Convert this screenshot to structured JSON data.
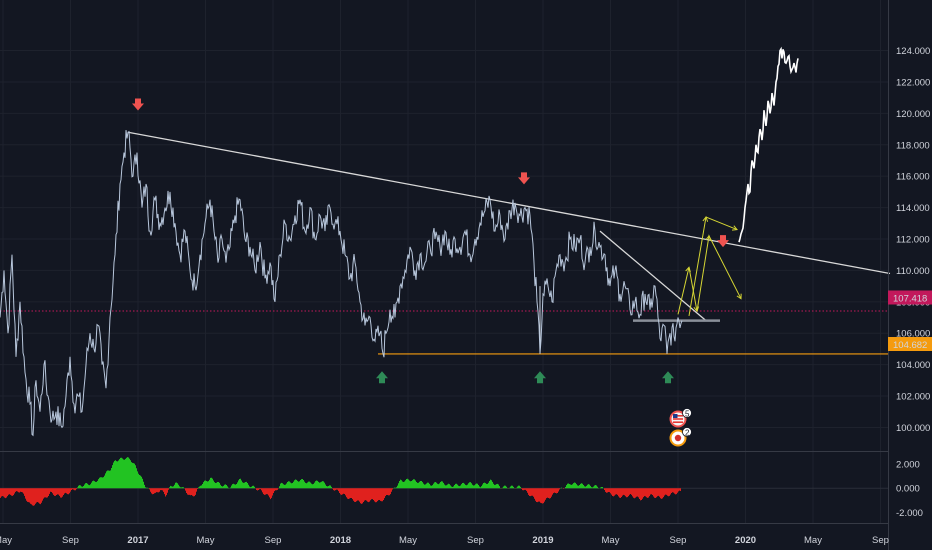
{
  "colors": {
    "background": "#131722",
    "price_line": "#b8c7dc",
    "projection": "#ffffff",
    "trendline": "#d8d8d8",
    "support": "#f59b0e",
    "dotted_level": "#c2185b",
    "bear_arrow": "#ef5350",
    "bull_arrow": "#2e8b57",
    "path_arrows": "#d6d634",
    "osc_positive": "#22c322",
    "osc_negative": "#e0211e"
  },
  "icons": {
    "event_us": "us-flag-event-icon",
    "event_jp": "japan-flag-event-icon"
  },
  "events": [
    {
      "label": "5"
    },
    {
      "label": "2"
    }
  ],
  "price_axis": {
    "ticks": [
      "124.000",
      "122.000",
      "120.000",
      "118.000",
      "116.000",
      "114.000",
      "112.000",
      "110.000",
      "108.000",
      "106.000",
      "104.000",
      "102.000",
      "100.000"
    ]
  },
  "price_labels": {
    "current": "107.418",
    "support": "104.682"
  },
  "osc_axis": {
    "ticks": [
      "2.000",
      "0.000",
      "-2.000"
    ]
  },
  "time_axis": {
    "ticks": [
      {
        "label": "May",
        "year": false
      },
      {
        "label": "Sep",
        "year": false
      },
      {
        "label": "2017",
        "year": true
      },
      {
        "label": "May",
        "year": false
      },
      {
        "label": "Sep",
        "year": false
      },
      {
        "label": "2018",
        "year": true
      },
      {
        "label": "May",
        "year": false
      },
      {
        "label": "Sep",
        "year": false
      },
      {
        "label": "2019",
        "year": true
      },
      {
        "label": "May",
        "year": false
      },
      {
        "label": "Sep",
        "year": false
      },
      {
        "label": "2020",
        "year": true
      },
      {
        "label": "May",
        "year": false
      },
      {
        "label": "Sep",
        "year": false
      }
    ]
  },
  "chart_data": {
    "type": "line",
    "price_levels": {
      "current": 107.418,
      "support": 104.682
    },
    "price_ylim": [
      98.5,
      125.5
    ],
    "price_series": [
      {
        "t": 0,
        "y": 107
      },
      {
        "t": 4,
        "y": 110
      },
      {
        "t": 8,
        "y": 106
      },
      {
        "t": 12,
        "y": 111
      },
      {
        "t": 16,
        "y": 104.5
      },
      {
        "t": 20,
        "y": 108
      },
      {
        "t": 25,
        "y": 103.5
      },
      {
        "t": 30,
        "y": 101.5
      },
      {
        "t": 33,
        "y": 99.5
      },
      {
        "t": 36,
        "y": 103
      },
      {
        "t": 40,
        "y": 101
      },
      {
        "t": 44,
        "y": 104
      },
      {
        "t": 48,
        "y": 102
      },
      {
        "t": 52,
        "y": 100.5
      },
      {
        "t": 56,
        "y": 101
      },
      {
        "t": 62,
        "y": 100
      },
      {
        "t": 66,
        "y": 102
      },
      {
        "t": 70,
        "y": 104.5
      },
      {
        "t": 74,
        "y": 101.5
      },
      {
        "t": 78,
        "y": 102
      },
      {
        "t": 82,
        "y": 101
      },
      {
        "t": 86,
        "y": 104
      },
      {
        "t": 90,
        "y": 106
      },
      {
        "t": 94,
        "y": 105
      },
      {
        "t": 98,
        "y": 106.5
      },
      {
        "t": 102,
        "y": 104
      },
      {
        "t": 106,
        "y": 102.5
      },
      {
        "t": 110,
        "y": 107
      },
      {
        "t": 115,
        "y": 111
      },
      {
        "t": 120,
        "y": 115.5
      },
      {
        "t": 124,
        "y": 117.5
      },
      {
        "t": 128,
        "y": 118.8
      },
      {
        "t": 133,
        "y": 116
      },
      {
        "t": 137,
        "y": 117.5
      },
      {
        "t": 142,
        "y": 114
      },
      {
        "t": 146,
        "y": 115.5
      },
      {
        "t": 150,
        "y": 112.5
      },
      {
        "t": 155,
        "y": 114.5
      },
      {
        "t": 160,
        "y": 113
      },
      {
        "t": 165,
        "y": 114
      },
      {
        "t": 170,
        "y": 115
      },
      {
        "t": 175,
        "y": 113
      },
      {
        "t": 180,
        "y": 111
      },
      {
        "t": 185,
        "y": 112.5
      },
      {
        "t": 190,
        "y": 110
      },
      {
        "t": 195,
        "y": 109
      },
      {
        "t": 200,
        "y": 111
      },
      {
        "t": 205,
        "y": 113
      },
      {
        "t": 210,
        "y": 114.5
      },
      {
        "t": 214,
        "y": 112.5
      },
      {
        "t": 218,
        "y": 110.5
      },
      {
        "t": 222,
        "y": 112
      },
      {
        "t": 226,
        "y": 110.5
      },
      {
        "t": 230,
        "y": 111.5
      },
      {
        "t": 235,
        "y": 113.5
      },
      {
        "t": 240,
        "y": 114.5
      },
      {
        "t": 245,
        "y": 112
      },
      {
        "t": 250,
        "y": 111.5
      },
      {
        "t": 255,
        "y": 110
      },
      {
        "t": 260,
        "y": 111.8
      },
      {
        "t": 265,
        "y": 109.5
      },
      {
        "t": 270,
        "y": 110.5
      },
      {
        "t": 275,
        "y": 108
      },
      {
        "t": 280,
        "y": 111
      },
      {
        "t": 285,
        "y": 113
      },
      {
        "t": 290,
        "y": 112
      },
      {
        "t": 295,
        "y": 113.5
      },
      {
        "t": 300,
        "y": 114.5
      },
      {
        "t": 305,
        "y": 112.5
      },
      {
        "t": 310,
        "y": 114
      },
      {
        "t": 315,
        "y": 112
      },
      {
        "t": 320,
        "y": 113.5
      },
      {
        "t": 325,
        "y": 112.5
      },
      {
        "t": 330,
        "y": 114
      },
      {
        "t": 335,
        "y": 113
      },
      {
        "t": 340,
        "y": 112.5
      },
      {
        "t": 345,
        "y": 111
      },
      {
        "t": 350,
        "y": 109.5
      },
      {
        "t": 355,
        "y": 110.5
      },
      {
        "t": 360,
        "y": 108
      },
      {
        "t": 365,
        "y": 106.5
      },
      {
        "t": 370,
        "y": 107
      },
      {
        "t": 375,
        "y": 105.5
      },
      {
        "t": 380,
        "y": 106
      },
      {
        "t": 383,
        "y": 104.7
      },
      {
        "t": 386,
        "y": 106
      },
      {
        "t": 390,
        "y": 107.5
      },
      {
        "t": 395,
        "y": 107
      },
      {
        "t": 400,
        "y": 109
      },
      {
        "t": 405,
        "y": 110
      },
      {
        "t": 410,
        "y": 111.5
      },
      {
        "t": 415,
        "y": 110
      },
      {
        "t": 420,
        "y": 111
      },
      {
        "t": 425,
        "y": 110.5
      },
      {
        "t": 430,
        "y": 111.5
      },
      {
        "t": 435,
        "y": 112
      },
      {
        "t": 440,
        "y": 111.5
      },
      {
        "t": 445,
        "y": 112.5
      },
      {
        "t": 450,
        "y": 111
      },
      {
        "t": 455,
        "y": 112
      },
      {
        "t": 460,
        "y": 111.5
      },
      {
        "t": 465,
        "y": 112.5
      },
      {
        "t": 470,
        "y": 111
      },
      {
        "t": 475,
        "y": 112
      },
      {
        "t": 480,
        "y": 113
      },
      {
        "t": 485,
        "y": 113.8
      },
      {
        "t": 490,
        "y": 114.5
      },
      {
        "t": 495,
        "y": 112.5
      },
      {
        "t": 500,
        "y": 113.5
      },
      {
        "t": 505,
        "y": 112
      },
      {
        "t": 510,
        "y": 113.8
      },
      {
        "t": 515,
        "y": 114.3
      },
      {
        "t": 520,
        "y": 113.5
      },
      {
        "t": 525,
        "y": 114
      },
      {
        "t": 530,
        "y": 113.5
      },
      {
        "t": 534,
        "y": 110.5
      },
      {
        "t": 537,
        "y": 108
      },
      {
        "t": 540,
        "y": 104.7
      },
      {
        "t": 543,
        "y": 108.5
      },
      {
        "t": 548,
        "y": 109
      },
      {
        "t": 552,
        "y": 108
      },
      {
        "t": 556,
        "y": 110
      },
      {
        "t": 560,
        "y": 111
      },
      {
        "t": 565,
        "y": 110.5
      },
      {
        "t": 570,
        "y": 112
      },
      {
        "t": 575,
        "y": 111.5
      },
      {
        "t": 580,
        "y": 112
      },
      {
        "t": 585,
        "y": 110.5
      },
      {
        "t": 590,
        "y": 111.5
      },
      {
        "t": 595,
        "y": 112.5
      },
      {
        "t": 600,
        "y": 111.5
      },
      {
        "t": 605,
        "y": 111
      },
      {
        "t": 610,
        "y": 109
      },
      {
        "t": 615,
        "y": 110
      },
      {
        "t": 620,
        "y": 108.5
      },
      {
        "t": 625,
        "y": 109
      },
      {
        "t": 630,
        "y": 107.5
      },
      {
        "t": 635,
        "y": 108
      },
      {
        "t": 640,
        "y": 107.2
      },
      {
        "t": 645,
        "y": 108.5
      },
      {
        "t": 650,
        "y": 107.5
      },
      {
        "t": 655,
        "y": 109
      },
      {
        "t": 658,
        "y": 107
      },
      {
        "t": 661,
        "y": 105.5
      },
      {
        "t": 664,
        "y": 106.5
      },
      {
        "t": 667,
        "y": 104.7
      },
      {
        "t": 670,
        "y": 106
      },
      {
        "t": 674,
        "y": 105.8
      },
      {
        "t": 678,
        "y": 107
      },
      {
        "t": 682,
        "y": 106.8
      }
    ],
    "projection_series": [
      {
        "t": 739,
        "y": 111.8
      },
      {
        "t": 742,
        "y": 112.5
      },
      {
        "t": 745,
        "y": 114
      },
      {
        "t": 748,
        "y": 115.5
      },
      {
        "t": 750,
        "y": 115
      },
      {
        "t": 752,
        "y": 117
      },
      {
        "t": 754,
        "y": 116.5
      },
      {
        "t": 756,
        "y": 118
      },
      {
        "t": 758,
        "y": 117.5
      },
      {
        "t": 760,
        "y": 119
      },
      {
        "t": 762,
        "y": 118.3
      },
      {
        "t": 764,
        "y": 120.2
      },
      {
        "t": 766,
        "y": 119.2
      },
      {
        "t": 768,
        "y": 120.8
      },
      {
        "t": 770,
        "y": 120
      },
      {
        "t": 772,
        "y": 121.3
      },
      {
        "t": 774,
        "y": 120.5
      },
      {
        "t": 776,
        "y": 122
      },
      {
        "t": 778,
        "y": 123
      },
      {
        "t": 780,
        "y": 124
      },
      {
        "t": 782,
        "y": 123.5
      },
      {
        "t": 784,
        "y": 123.9
      },
      {
        "t": 786,
        "y": 123.2
      },
      {
        "t": 788,
        "y": 123.6
      },
      {
        "t": 790,
        "y": 123
      },
      {
        "t": 792,
        "y": 122.8
      },
      {
        "t": 794,
        "y": 123.2
      },
      {
        "t": 796,
        "y": 122.6
      },
      {
        "t": 798,
        "y": 123.5
      }
    ],
    "trendlines": [
      {
        "t1": 128,
        "y1": 118.8,
        "t2": 890,
        "y2": 109.8
      },
      {
        "t1": 600,
        "y1": 112.5,
        "t2": 706,
        "y2": 106.8
      }
    ],
    "zone": {
      "t1": 633,
      "t2": 720,
      "y": 106.8
    },
    "bear_markers": [
      {
        "t": 138,
        "y": 120.5
      },
      {
        "t": 524,
        "y": 115.8
      },
      {
        "t": 723,
        "y": 111.8
      }
    ],
    "bull_markers": [
      {
        "t": 382,
        "y": 103.2
      },
      {
        "t": 540,
        "y": 103.2
      },
      {
        "t": 668,
        "y": 103.2
      }
    ],
    "scenario_paths": [
      {
        "points": [
          {
            "t": 678,
            "y": 107.2
          },
          {
            "t": 689,
            "y": 110.2
          },
          {
            "t": 697,
            "y": 107.4
          },
          {
            "t": 709,
            "y": 112.2
          },
          {
            "t": 741,
            "y": 108.2
          }
        ]
      },
      {
        "points": [
          {
            "t": 689,
            "y": 107.1
          },
          {
            "t": 706,
            "y": 113.4
          },
          {
            "t": 737,
            "y": 112.6
          }
        ]
      }
    ],
    "oscillator": {
      "ylim": [
        -2.8,
        3.0
      ],
      "series": [
        {
          "t": 0,
          "y": -0.8
        },
        {
          "t": 10,
          "y": -0.6
        },
        {
          "t": 20,
          "y": -0.2
        },
        {
          "t": 30,
          "y": -1.4
        },
        {
          "t": 40,
          "y": -1.2
        },
        {
          "t": 50,
          "y": -0.4
        },
        {
          "t": 60,
          "y": -0.7
        },
        {
          "t": 70,
          "y": -0.3
        },
        {
          "t": 80,
          "y": 0.2
        },
        {
          "t": 90,
          "y": 0.4
        },
        {
          "t": 100,
          "y": 0.8
        },
        {
          "t": 110,
          "y": 1.6
        },
        {
          "t": 115,
          "y": 2.3
        },
        {
          "t": 120,
          "y": 2.4
        },
        {
          "t": 125,
          "y": 2.5
        },
        {
          "t": 130,
          "y": 2.4
        },
        {
          "t": 135,
          "y": 1.8
        },
        {
          "t": 140,
          "y": 1.0
        },
        {
          "t": 145,
          "y": 0.2
        },
        {
          "t": 150,
          "y": -0.3
        },
        {
          "t": 155,
          "y": -0.5
        },
        {
          "t": 160,
          "y": -0.1
        },
        {
          "t": 165,
          "y": -0.6
        },
        {
          "t": 170,
          "y": 0.1
        },
        {
          "t": 175,
          "y": 0.4
        },
        {
          "t": 180,
          "y": 0.2
        },
        {
          "t": 185,
          "y": -0.2
        },
        {
          "t": 190,
          "y": -0.7
        },
        {
          "t": 195,
          "y": -0.5
        },
        {
          "t": 200,
          "y": 0.3
        },
        {
          "t": 210,
          "y": 0.8
        },
        {
          "t": 220,
          "y": 0.3
        },
        {
          "t": 230,
          "y": 0.1
        },
        {
          "t": 240,
          "y": 0.7
        },
        {
          "t": 250,
          "y": 0.2
        },
        {
          "t": 260,
          "y": -0.2
        },
        {
          "t": 270,
          "y": -0.8
        },
        {
          "t": 280,
          "y": 0.3
        },
        {
          "t": 290,
          "y": 0.5
        },
        {
          "t": 300,
          "y": 0.7
        },
        {
          "t": 310,
          "y": 0.4
        },
        {
          "t": 320,
          "y": 0.6
        },
        {
          "t": 330,
          "y": 0.1
        },
        {
          "t": 340,
          "y": -0.4
        },
        {
          "t": 350,
          "y": -0.9
        },
        {
          "t": 360,
          "y": -1.2
        },
        {
          "t": 370,
          "y": -1.0
        },
        {
          "t": 380,
          "y": -1.1
        },
        {
          "t": 390,
          "y": -0.4
        },
        {
          "t": 400,
          "y": 0.6
        },
        {
          "t": 410,
          "y": 0.7
        },
        {
          "t": 420,
          "y": 0.5
        },
        {
          "t": 430,
          "y": 0.3
        },
        {
          "t": 440,
          "y": 0.5
        },
        {
          "t": 450,
          "y": 0.2
        },
        {
          "t": 460,
          "y": 0.3
        },
        {
          "t": 470,
          "y": 0.4
        },
        {
          "t": 480,
          "y": 0.2
        },
        {
          "t": 490,
          "y": 0.6
        },
        {
          "t": 500,
          "y": 0.1
        },
        {
          "t": 510,
          "y": 0.1
        },
        {
          "t": 520,
          "y": 0.1
        },
        {
          "t": 530,
          "y": -0.6
        },
        {
          "t": 540,
          "y": -1.3
        },
        {
          "t": 550,
          "y": -0.7
        },
        {
          "t": 560,
          "y": -0.1
        },
        {
          "t": 570,
          "y": 0.4
        },
        {
          "t": 580,
          "y": 0.3
        },
        {
          "t": 590,
          "y": 0.2
        },
        {
          "t": 600,
          "y": 0.1
        },
        {
          "t": 610,
          "y": -0.5
        },
        {
          "t": 620,
          "y": -0.7
        },
        {
          "t": 630,
          "y": -0.6
        },
        {
          "t": 640,
          "y": -0.9
        },
        {
          "t": 650,
          "y": -0.6
        },
        {
          "t": 660,
          "y": -0.8
        },
        {
          "t": 670,
          "y": -0.5
        },
        {
          "t": 680,
          "y": -0.3
        }
      ]
    }
  }
}
